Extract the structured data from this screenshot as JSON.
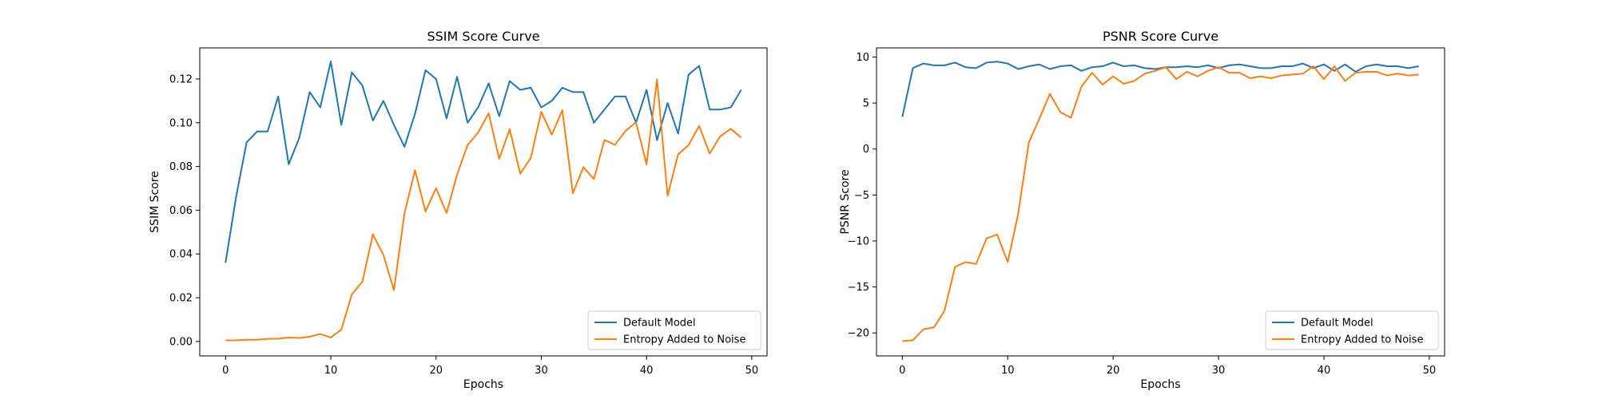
{
  "chart_data": [
    {
      "type": "line",
      "title": "SSIM Score Curve",
      "xlabel": "Epochs",
      "ylabel": "SSIM Score",
      "xlim": [
        -2.45,
        51.45
      ],
      "ylim": [
        -0.0066,
        0.1342
      ],
      "xticks": [
        0,
        10,
        20,
        30,
        40,
        50
      ],
      "yticks": [
        0.0,
        0.02,
        0.04,
        0.06,
        0.08,
        0.1,
        0.12
      ],
      "ytick_labels": [
        "0.00",
        "0.02",
        "0.04",
        "0.06",
        "0.08",
        "0.10",
        "0.12"
      ],
      "grid": false,
      "legend_position": "lower right",
      "series": [
        {
          "name": "Default Model",
          "color": "#1f77b4",
          "x": [
            0,
            1,
            2,
            3,
            4,
            5,
            6,
            7,
            8,
            9,
            10,
            11,
            12,
            13,
            14,
            15,
            16,
            17,
            18,
            19,
            20,
            21,
            22,
            23,
            24,
            25,
            26,
            27,
            28,
            29,
            30,
            31,
            32,
            33,
            34,
            35,
            36,
            37,
            38,
            39,
            40,
            41,
            42,
            43,
            44,
            45,
            46,
            47,
            48,
            49
          ],
          "values": [
            0.036,
            0.066,
            0.091,
            0.096,
            0.096,
            0.112,
            0.081,
            0.093,
            0.114,
            0.107,
            0.128,
            0.099,
            0.123,
            0.117,
            0.101,
            0.11,
            0.099,
            0.089,
            0.104,
            0.124,
            0.12,
            0.102,
            0.121,
            0.1,
            0.107,
            0.118,
            0.103,
            0.119,
            0.115,
            0.116,
            0.107,
            0.11,
            0.116,
            0.114,
            0.114,
            0.1,
            0.106,
            0.112,
            0.112,
            0.1,
            0.115,
            0.092,
            0.109,
            0.095,
            0.122,
            0.126,
            0.106,
            0.106,
            0.107,
            0.115
          ]
        },
        {
          "name": "Entropy Added to Noise",
          "color": "#ff7f0e",
          "x": [
            0,
            1,
            2,
            3,
            4,
            5,
            6,
            7,
            8,
            9,
            10,
            11,
            12,
            13,
            14,
            15,
            16,
            17,
            18,
            19,
            20,
            21,
            22,
            23,
            24,
            25,
            26,
            27,
            28,
            29,
            30,
            31,
            32,
            33,
            34,
            35,
            36,
            37,
            38,
            39,
            40,
            41,
            42,
            43,
            44,
            45,
            46,
            47,
            48,
            49
          ],
          "values": [
            0.0005,
            0.0005,
            0.0008,
            0.0008,
            0.0012,
            0.0013,
            0.0018,
            0.0016,
            0.0022,
            0.0034,
            0.0018,
            0.0054,
            0.0215,
            0.0273,
            0.049,
            0.0395,
            0.0234,
            0.0585,
            0.0783,
            0.0594,
            0.0701,
            0.0587,
            0.0763,
            0.0898,
            0.0955,
            0.1043,
            0.0835,
            0.097,
            0.0767,
            0.0839,
            0.105,
            0.0945,
            0.1057,
            0.0677,
            0.0797,
            0.0742,
            0.0921,
            0.0899,
            0.0962,
            0.1002,
            0.081,
            0.1198,
            0.0666,
            0.0855,
            0.0898,
            0.0985,
            0.0859,
            0.0938,
            0.0972,
            0.0931
          ]
        }
      ]
    },
    {
      "type": "line",
      "title": "PSNR Score Curve",
      "xlabel": "Epochs",
      "ylabel": "PSNR Score",
      "xlim": [
        -2.45,
        51.45
      ],
      "ylim": [
        -22.5,
        11.0
      ],
      "xticks": [
        0,
        10,
        20,
        30,
        40,
        50
      ],
      "yticks": [
        -20,
        -15,
        -10,
        -5,
        0,
        5,
        10
      ],
      "ytick_labels": [
        "−20",
        "−15",
        "−10",
        "−5",
        "0",
        "5",
        "10"
      ],
      "grid": false,
      "legend_position": "lower right",
      "series": [
        {
          "name": "Default Model",
          "color": "#1f77b4",
          "x": [
            0,
            1,
            2,
            3,
            4,
            5,
            6,
            7,
            8,
            9,
            10,
            11,
            12,
            13,
            14,
            15,
            16,
            17,
            18,
            19,
            20,
            21,
            22,
            23,
            24,
            25,
            26,
            27,
            28,
            29,
            30,
            31,
            32,
            33,
            34,
            35,
            36,
            37,
            38,
            39,
            40,
            41,
            42,
            43,
            44,
            45,
            46,
            47,
            48,
            49
          ],
          "values": [
            3.5,
            8.8,
            9.3,
            9.1,
            9.1,
            9.4,
            8.9,
            8.8,
            9.4,
            9.5,
            9.3,
            8.7,
            9.0,
            9.2,
            8.7,
            9.0,
            9.1,
            8.5,
            8.9,
            9.0,
            9.4,
            9.0,
            9.1,
            8.8,
            8.7,
            8.9,
            8.9,
            9.0,
            8.9,
            9.1,
            8.8,
            9.1,
            9.2,
            9.0,
            8.8,
            8.8,
            9.0,
            9.0,
            9.3,
            8.8,
            9.2,
            8.5,
            9.2,
            8.4,
            9.0,
            9.2,
            9.0,
            9.0,
            8.8,
            9.0
          ]
        },
        {
          "name": "Entropy Added to Noise",
          "color": "#ff7f0e",
          "x": [
            0,
            1,
            2,
            3,
            4,
            5,
            6,
            7,
            8,
            9,
            10,
            11,
            12,
            13,
            14,
            15,
            16,
            17,
            18,
            19,
            20,
            21,
            22,
            23,
            24,
            25,
            26,
            27,
            28,
            29,
            30,
            31,
            32,
            33,
            34,
            35,
            36,
            37,
            38,
            39,
            40,
            41,
            42,
            43,
            44,
            45,
            46,
            47,
            48,
            49
          ],
          "values": [
            -20.9,
            -20.8,
            -19.6,
            -19.4,
            -17.6,
            -12.8,
            -12.3,
            -12.5,
            -9.7,
            -9.3,
            -12.3,
            -7.0,
            0.7,
            3.3,
            6.0,
            4.0,
            3.4,
            6.8,
            8.3,
            7.0,
            7.9,
            7.1,
            7.4,
            8.2,
            8.5,
            8.9,
            7.6,
            8.4,
            7.9,
            8.5,
            8.9,
            8.3,
            8.3,
            7.7,
            7.9,
            7.7,
            8.0,
            8.1,
            8.2,
            9.0,
            7.6,
            9.0,
            7.4,
            8.3,
            8.4,
            8.4,
            8.0,
            8.2,
            8.0,
            8.1
          ]
        }
      ]
    }
  ]
}
